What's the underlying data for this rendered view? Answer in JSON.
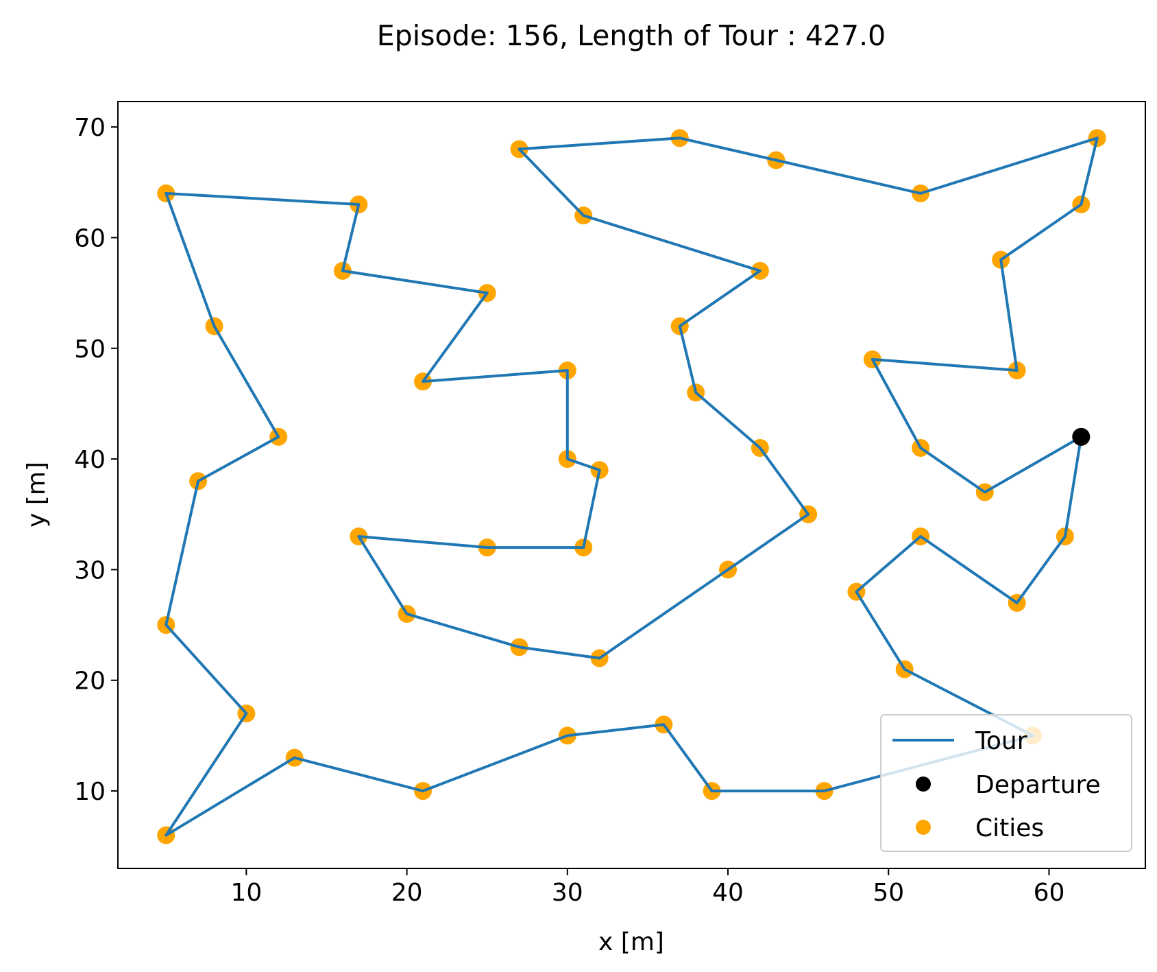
{
  "chart_data": {
    "type": "line",
    "title": "Episode: 156, Length of Tour : 427.0",
    "xlabel": "x [m]",
    "ylabel": "y [m]",
    "xlim": [
      2,
      66
    ],
    "ylim": [
      3,
      72.3
    ],
    "xticks": [
      10,
      20,
      30,
      40,
      50,
      60
    ],
    "yticks": [
      10,
      20,
      30,
      40,
      50,
      60,
      70
    ],
    "grid": false,
    "legend": {
      "placement": "lower-right",
      "entries": [
        "Tour",
        "Departure",
        "Cities"
      ]
    },
    "colors": {
      "tour": "#1f77b4",
      "cities": "#ffa500",
      "departure": "#000000",
      "axes": "#000000"
    },
    "series": [
      {
        "name": "Tour",
        "kind": "line",
        "points": [
          [
            62,
            42
          ],
          [
            56,
            37
          ],
          [
            52,
            41
          ],
          [
            49,
            49
          ],
          [
            58,
            48
          ],
          [
            57,
            58
          ],
          [
            62,
            63
          ],
          [
            63,
            69
          ],
          [
            52,
            64
          ],
          [
            43,
            67
          ],
          [
            37,
            69
          ],
          [
            27,
            68
          ],
          [
            31,
            62
          ],
          [
            42,
            57
          ],
          [
            37,
            52
          ],
          [
            38,
            46
          ],
          [
            42,
            41
          ],
          [
            45,
            35
          ],
          [
            40,
            30
          ],
          [
            32,
            22
          ],
          [
            27,
            23
          ],
          [
            20,
            26
          ],
          [
            17,
            33
          ],
          [
            25,
            32
          ],
          [
            31,
            32
          ],
          [
            32,
            39
          ],
          [
            30,
            40
          ],
          [
            30,
            48
          ],
          [
            21,
            47
          ],
          [
            25,
            55
          ],
          [
            16,
            57
          ],
          [
            17,
            63
          ],
          [
            5,
            64
          ],
          [
            8,
            52
          ],
          [
            12,
            42
          ],
          [
            7,
            38
          ],
          [
            5,
            25
          ],
          [
            10,
            17
          ],
          [
            5,
            6
          ],
          [
            13,
            13
          ],
          [
            21,
            10
          ],
          [
            30,
            15
          ],
          [
            36,
            16
          ],
          [
            39,
            10
          ],
          [
            46,
            10
          ],
          [
            59,
            15
          ],
          [
            51,
            21
          ],
          [
            48,
            28
          ],
          [
            52,
            33
          ],
          [
            58,
            27
          ],
          [
            61,
            33
          ],
          [
            62,
            42
          ]
        ]
      },
      {
        "name": "Departure",
        "kind": "scatter",
        "points": [
          [
            62,
            42
          ]
        ]
      },
      {
        "name": "Cities",
        "kind": "scatter",
        "points": [
          [
            62,
            42
          ],
          [
            56,
            37
          ],
          [
            52,
            41
          ],
          [
            49,
            49
          ],
          [
            58,
            48
          ],
          [
            57,
            58
          ],
          [
            62,
            63
          ],
          [
            63,
            69
          ],
          [
            52,
            64
          ],
          [
            43,
            67
          ],
          [
            37,
            69
          ],
          [
            27,
            68
          ],
          [
            31,
            62
          ],
          [
            42,
            57
          ],
          [
            37,
            52
          ],
          [
            38,
            46
          ],
          [
            42,
            41
          ],
          [
            45,
            35
          ],
          [
            40,
            30
          ],
          [
            32,
            22
          ],
          [
            27,
            23
          ],
          [
            20,
            26
          ],
          [
            17,
            33
          ],
          [
            25,
            32
          ],
          [
            31,
            32
          ],
          [
            32,
            39
          ],
          [
            30,
            40
          ],
          [
            30,
            48
          ],
          [
            21,
            47
          ],
          [
            25,
            55
          ],
          [
            16,
            57
          ],
          [
            17,
            63
          ],
          [
            5,
            64
          ],
          [
            8,
            52
          ],
          [
            12,
            42
          ],
          [
            7,
            38
          ],
          [
            5,
            25
          ],
          [
            10,
            17
          ],
          [
            5,
            6
          ],
          [
            13,
            13
          ],
          [
            21,
            10
          ],
          [
            30,
            15
          ],
          [
            36,
            16
          ],
          [
            39,
            10
          ],
          [
            46,
            10
          ],
          [
            59,
            15
          ],
          [
            51,
            21
          ],
          [
            48,
            28
          ],
          [
            52,
            33
          ],
          [
            58,
            27
          ],
          [
            61,
            33
          ]
        ]
      }
    ]
  }
}
